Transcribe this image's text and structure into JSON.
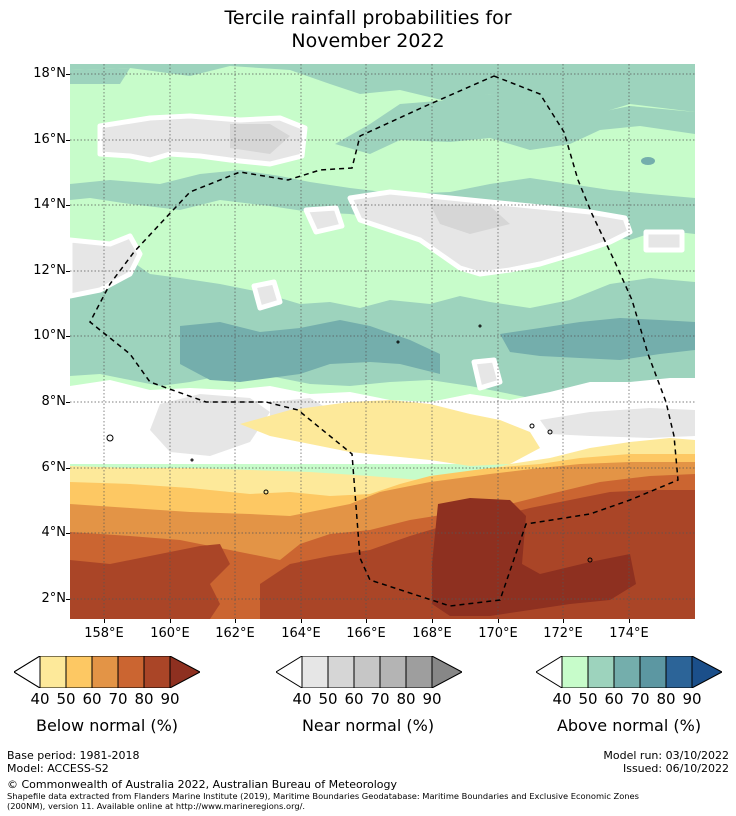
{
  "title_line1": "Tercile rainfall probabilities for",
  "title_line2": "November 2022",
  "lat_labels": [
    "18°N",
    "16°N",
    "14°N",
    "12°N",
    "10°N",
    "8°N",
    "6°N",
    "4°N",
    "2°N"
  ],
  "lon_labels": [
    "158°E",
    "160°E",
    "162°E",
    "164°E",
    "166°E",
    "168°E",
    "170°E",
    "172°E",
    "174°E"
  ],
  "colorbars": [
    {
      "title": "Below normal (%)",
      "labels": [
        "40",
        "50",
        "60",
        "70",
        "80",
        "90"
      ],
      "colors": [
        "#ffffff",
        "#fde99a",
        "#fdc863",
        "#e39446",
        "#cb6531",
        "#aa4527",
        "#8e3020"
      ]
    },
    {
      "title": "Near normal (%)",
      "labels": [
        "40",
        "50",
        "60",
        "70",
        "80",
        "90"
      ],
      "colors": [
        "#ffffff",
        "#e6e6e6",
        "#d6d6d6",
        "#c6c6c6",
        "#b4b4b4",
        "#9e9e9e",
        "#878787"
      ]
    },
    {
      "title": "Above normal (%)",
      "labels": [
        "40",
        "50",
        "60",
        "70",
        "80",
        "90"
      ],
      "colors": [
        "#ffffff",
        "#c7fcca",
        "#9dd3bd",
        "#74aeac",
        "#5c97a2",
        "#2c6498",
        "#1b4f8a"
      ]
    }
  ],
  "footer": {
    "base_period": "Base period: 1981-2018",
    "model": "Model: ACCESS-S2",
    "model_run": "Model run: 03/10/2022",
    "issued": "Issued: 06/10/2022",
    "copyright": "© Commonwealth of Australia 2022, Australian Bureau of Meteorology",
    "shapefile_line1": "Shapefile data extracted from Flanders Marine Institute (2019), Maritime Boundaries Geodatabase: Maritime Boundaries and Exclusive Economic Zones",
    "shapefile_line2": "(200NM), version 11. Available online at http://www.marineregions.org/."
  }
}
